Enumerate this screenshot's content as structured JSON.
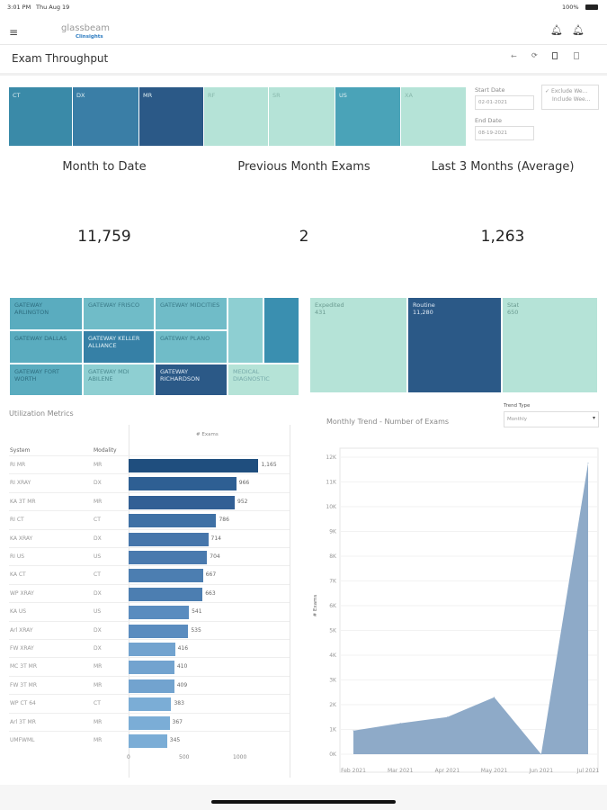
{
  "status_bar": {
    "time": "3:01 PM",
    "date": "Thu Aug 19",
    "battery": "100%"
  },
  "header": {
    "logo_main": "glassbeam",
    "logo_sub": "Clinsights"
  },
  "page": {
    "title": "Exam Throughput"
  },
  "modalities": [
    {
      "label": "CT",
      "color": "#3a8aa8"
    },
    {
      "label": "DX",
      "color": "#3a7ea6"
    },
    {
      "label": "MR",
      "color": "#2b5987"
    },
    {
      "label": "RF",
      "color": "#b5e3d7"
    },
    {
      "label": "SR",
      "color": "#b5e3d7"
    },
    {
      "label": "US",
      "color": "#4aa3b8"
    },
    {
      "label": "XA",
      "color": "#b5e3d7"
    }
  ],
  "filters": {
    "start_label": "Start Date",
    "start_value": "02-01-2021",
    "end_label": "End Date",
    "end_value": "08-19-2021",
    "weekend_options": [
      "Exclude We...",
      "Include Wee..."
    ],
    "weekend_selected": 0
  },
  "kpis": [
    {
      "label": "Month to Date",
      "value": "11,759"
    },
    {
      "label": "Previous Month Exams",
      "value": "2"
    },
    {
      "label": "Last 3 Months (Average)",
      "value": "1,263"
    }
  ],
  "sites": [
    "GATEWAY ARLINGTON",
    "GATEWAY FRISCO",
    "GATEWAY MIDCITIES",
    "GATEWAY DALLAS",
    "GATEWAY KELLER ALLIANCE",
    "GATEWAY PLANO",
    "GATEWAY FORT WORTH",
    "GATEWAY MDI ABILENE",
    "GATEWAY RICHARDSON",
    "MEDICAL DIAGNOSTIC"
  ],
  "priorities": [
    {
      "label": "Expedited",
      "value": "431"
    },
    {
      "label": "Routine",
      "value": "11,280"
    },
    {
      "label": "Stat",
      "value": "650"
    }
  ],
  "utilization": {
    "title": "Utilization Metrics",
    "col_system": "System",
    "col_modality": "Modality",
    "measure": "# Exams",
    "axis_ticks": [
      "0",
      "500",
      "1000"
    ],
    "rows": [
      {
        "system": "RI MR",
        "modality": "MR",
        "value": 1165,
        "label": "1,165"
      },
      {
        "system": "RI XRAY",
        "modality": "DX",
        "value": 966,
        "label": "966"
      },
      {
        "system": "KA 3T MR",
        "modality": "MR",
        "value": 952,
        "label": "952"
      },
      {
        "system": "RI CT",
        "modality": "CT",
        "value": 786,
        "label": "786"
      },
      {
        "system": "KA XRAY",
        "modality": "DX",
        "value": 714,
        "label": "714"
      },
      {
        "system": "RI US",
        "modality": "US",
        "value": 704,
        "label": "704"
      },
      {
        "system": "KA CT",
        "modality": "CT",
        "value": 667,
        "label": "667"
      },
      {
        "system": "WP XRAY",
        "modality": "DX",
        "value": 663,
        "label": "663"
      },
      {
        "system": "KA US",
        "modality": "US",
        "value": 541,
        "label": "541"
      },
      {
        "system": "Arl XRAY",
        "modality": "DX",
        "value": 535,
        "label": "535"
      },
      {
        "system": "FW XRAY",
        "modality": "DX",
        "value": 416,
        "label": "416"
      },
      {
        "system": "MC 3T MR",
        "modality": "MR",
        "value": 410,
        "label": "410"
      },
      {
        "system": "FW 3T MR",
        "modality": "MR",
        "value": 409,
        "label": "409"
      },
      {
        "system": "WP CT 64",
        "modality": "CT",
        "value": 383,
        "label": "383"
      },
      {
        "system": "Arl 3T MR",
        "modality": "MR",
        "value": 367,
        "label": "367"
      },
      {
        "system": "UMFWML",
        "modality": "MR",
        "value": 345,
        "label": "345"
      }
    ]
  },
  "trend_type": {
    "label": "Trend Type",
    "value": "Monthly"
  },
  "chart_data": {
    "type": "area",
    "title": "Monthly Trend - Number of Exams",
    "ylabel": "# Exams",
    "xlabel": "",
    "categories": [
      "Feb 2021",
      "Mar 2021",
      "Apr 2021",
      "May 2021",
      "Jun 2021",
      "Jul 2021"
    ],
    "values": [
      950,
      1250,
      1500,
      2300,
      2,
      11759
    ],
    "ylim": [
      0,
      12000
    ],
    "yticks": [
      "0K",
      "1K",
      "2K",
      "3K",
      "4K",
      "5K",
      "6K",
      "7K",
      "8K",
      "9K",
      "10K",
      "11K",
      "12K"
    ],
    "grid": true,
    "color": "#8eaac8"
  }
}
